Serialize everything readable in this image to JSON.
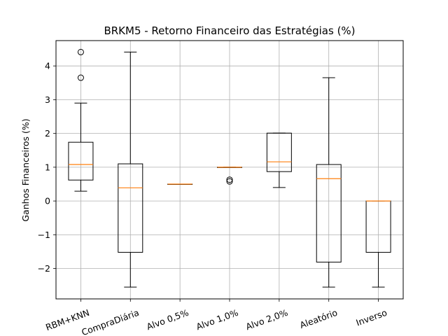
{
  "chart_data": {
    "type": "boxplot",
    "title": "BRKM5 - Retorno Financeiro das Estratégias (%)",
    "xlabel": "",
    "ylabel": "Ganhos Financeiros (%)",
    "ylim": [
      -2.9,
      4.75
    ],
    "yticks": [
      -2,
      -1,
      0,
      1,
      2,
      3,
      4
    ],
    "ytick_labels": [
      "−2",
      "−1",
      "0",
      "1",
      "2",
      "3",
      "4"
    ],
    "grid": true,
    "categories": [
      "RBM+KNN",
      "CompraDiária",
      "Alvo 0,5%",
      "Alvo 1,0%",
      "Alvo 2,0%",
      "Aleatório",
      "Inverso"
    ],
    "boxes": [
      {
        "whisker_low": 0.29,
        "q1": 0.62,
        "median": 1.08,
        "q3": 1.74,
        "whisker_high": 2.9,
        "outliers": [
          3.65,
          4.41
        ]
      },
      {
        "whisker_low": -2.55,
        "q1": -1.52,
        "median": 0.39,
        "q3": 1.1,
        "whisker_high": 4.41,
        "outliers": []
      },
      {
        "whisker_low": 0.5,
        "q1": 0.5,
        "median": 0.5,
        "q3": 0.5,
        "whisker_high": 0.5,
        "outliers": []
      },
      {
        "whisker_low": 1.0,
        "q1": 1.0,
        "median": 1.0,
        "q3": 1.0,
        "whisker_high": 1.0,
        "outliers": [
          0.58,
          0.63
        ]
      },
      {
        "whisker_low": 0.4,
        "q1": 0.87,
        "median": 1.16,
        "q3": 2.01,
        "whisker_high": 2.01,
        "outliers": []
      },
      {
        "whisker_low": -2.55,
        "q1": -1.81,
        "median": 0.66,
        "q3": 1.08,
        "whisker_high": 3.65,
        "outliers": []
      },
      {
        "whisker_low": -2.55,
        "q1": -1.52,
        "median": 0.0,
        "q3": 0.0,
        "whisker_high": 0.0,
        "outliers": []
      }
    ],
    "colors": {
      "box": "#000000",
      "median": "#ff7f0e",
      "grid": "#b0b0b0"
    }
  }
}
